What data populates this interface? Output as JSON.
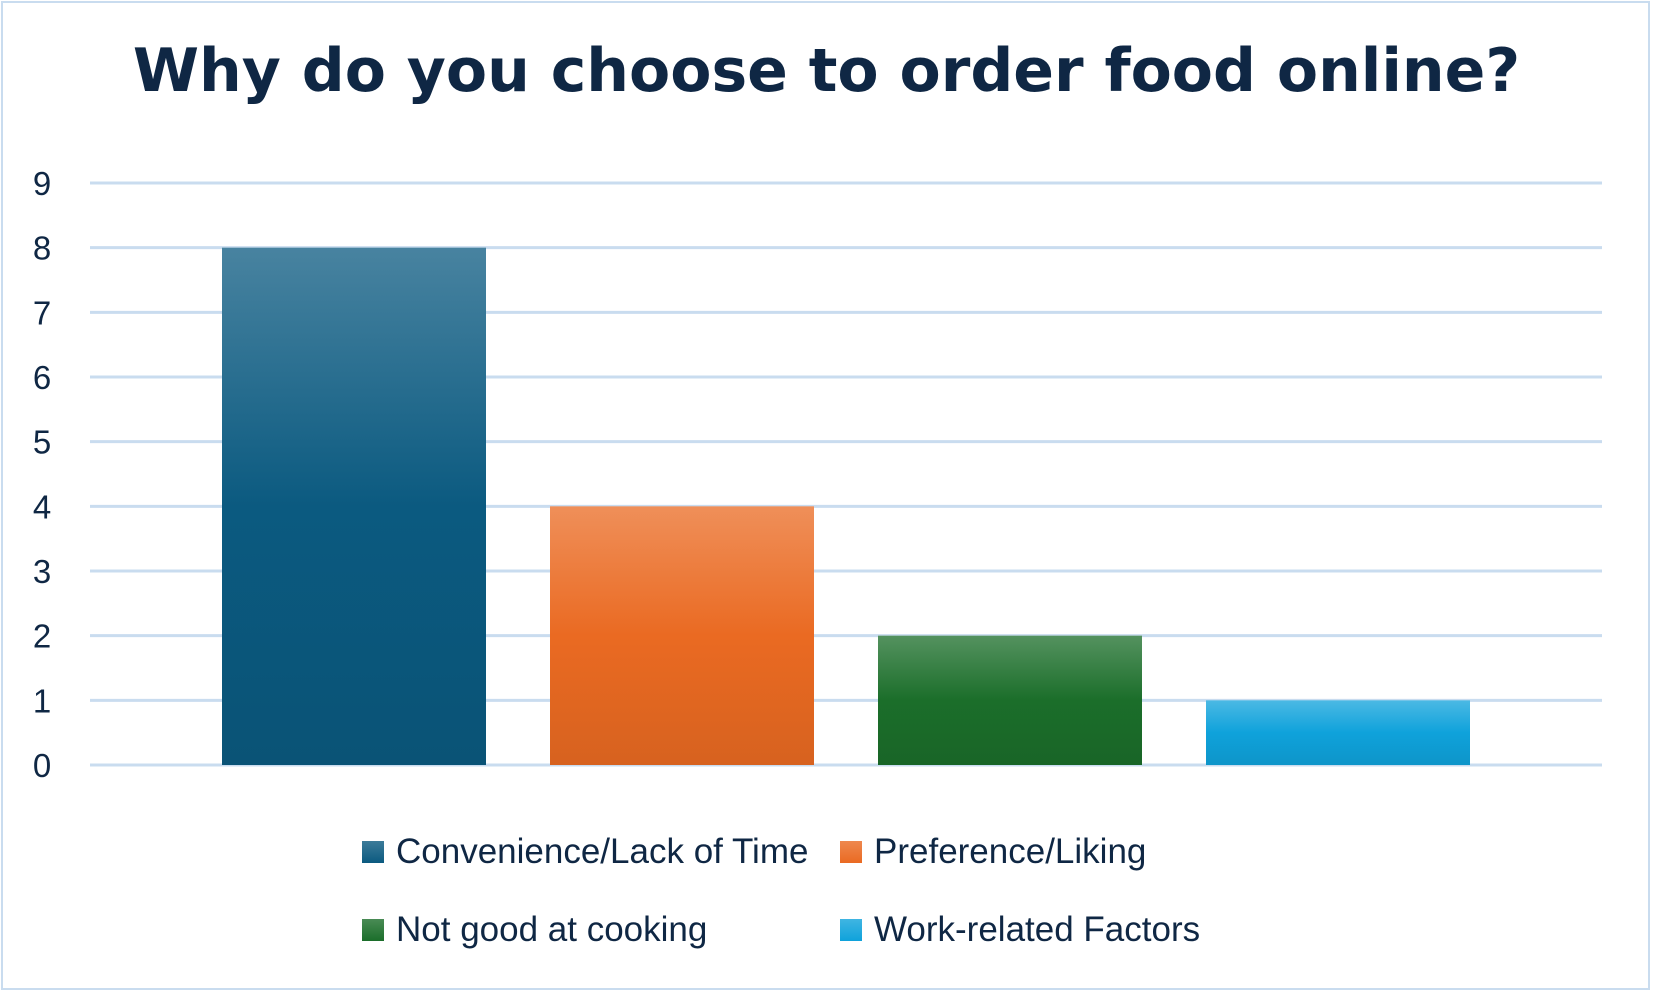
{
  "chart_data": {
    "type": "bar",
    "title": "Why do you choose to order food online?",
    "xlabel": "",
    "ylabel": "",
    "categories": [
      "Convenience/Lack of Time",
      "Preference/Liking",
      "Not good at cooking",
      "Work-related Factors"
    ],
    "values": [
      8,
      4,
      2,
      1
    ],
    "colors": [
      "#0b5a80",
      "#ea6a22",
      "#1b6e2a",
      "#0fa2db"
    ],
    "ylim": [
      0,
      9
    ],
    "yticks": [
      "0",
      "1",
      "2",
      "3",
      "4",
      "5",
      "6",
      "7",
      "8",
      "9"
    ],
    "grid": true,
    "legend_position": "bottom"
  }
}
